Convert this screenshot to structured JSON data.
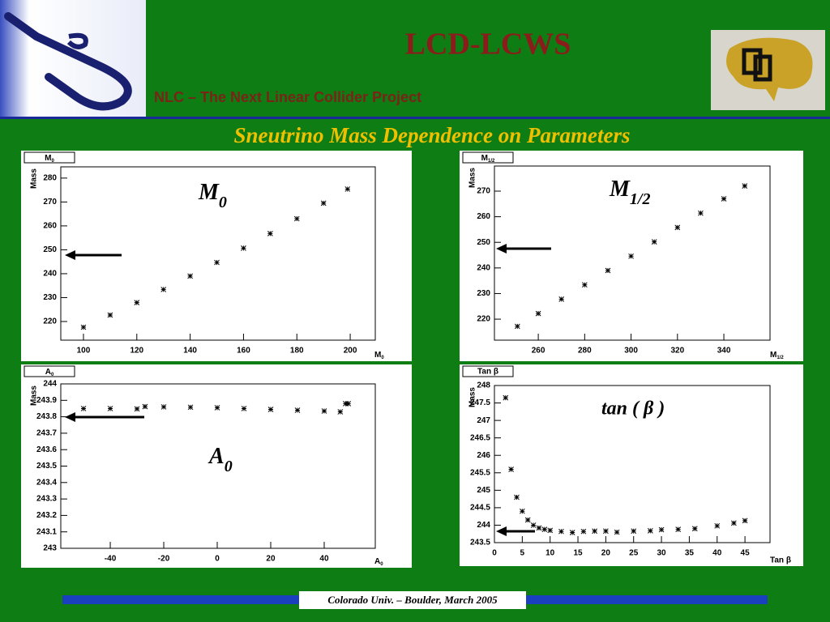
{
  "header": {
    "title": "LCD-LCWS",
    "subtitle": "NLC – The Next Linear Collider Project",
    "slide_title": "Sneutrino Mass Dependence on Parameters"
  },
  "footer": "Colorado Univ. – Boulder, March 2005",
  "chart_data": [
    {
      "type": "scatter",
      "box_label": {
        "base": "M",
        "sub": "0"
      },
      "y_label": "Mass",
      "x_label": {
        "base": "M",
        "sub": "0"
      },
      "annotation": {
        "base": "M",
        "sub": "0"
      },
      "color": "#000000",
      "x": [
        100,
        110,
        120,
        130,
        140,
        150,
        160,
        170,
        180,
        190,
        199
      ],
      "y": [
        217.6,
        222.7,
        227.9,
        233.4,
        239.0,
        244.7,
        250.7,
        256.8,
        263.0,
        269.5,
        275.4
      ],
      "xlim": [
        91.5,
        209.4
      ],
      "ylim": [
        212.2,
        284.7
      ],
      "xticks": [
        100,
        120,
        140,
        160,
        180,
        200
      ],
      "yticks": [
        220,
        230,
        240,
        250,
        260,
        270,
        280
      ]
    },
    {
      "type": "scatter",
      "box_label": {
        "base": "M",
        "sub": "1/2"
      },
      "y_label": "Mass",
      "x_label": {
        "base": "M",
        "sub": "1/2"
      },
      "annotation": {
        "base": "M",
        "sub": "1/2"
      },
      "color": "#000000",
      "x": [
        251,
        260,
        270,
        280,
        290,
        300,
        310,
        320,
        330,
        340,
        349
      ],
      "y": [
        217.2,
        222.2,
        227.8,
        233.4,
        239.0,
        244.6,
        250.2,
        255.8,
        261.4,
        267.0,
        272.0
      ],
      "xlim": [
        241.1,
        359.9
      ],
      "ylim": [
        211.8,
        279.8
      ],
      "xticks": [
        260,
        280,
        300,
        320,
        340
      ],
      "yticks": [
        220,
        230,
        240,
        250,
        260,
        270
      ]
    },
    {
      "type": "scatter",
      "box_label": {
        "base": "A",
        "sub": "0"
      },
      "y_label": "Mass",
      "x_label": {
        "base": "A",
        "sub": "0"
      },
      "annotation": {
        "base": "A",
        "sub": "0"
      },
      "color": "#000000",
      "x": [
        -50,
        -40,
        -30,
        -27,
        -20,
        -10,
        0,
        10,
        20,
        30,
        40,
        46,
        48,
        49
      ],
      "y": [
        243.85,
        243.85,
        243.848,
        243.862,
        243.86,
        243.858,
        243.855,
        243.85,
        243.845,
        243.84,
        243.835,
        243.83,
        243.88,
        243.88
      ],
      "xlim": [
        -58.5,
        59.1
      ],
      "ylim": [
        243,
        244
      ],
      "xticks": [
        -40,
        -20,
        0,
        20,
        40
      ],
      "yticks": [
        243,
        243.1,
        243.2,
        243.3,
        243.4,
        243.5,
        243.6,
        243.7,
        243.8,
        243.9,
        244
      ]
    },
    {
      "type": "scatter",
      "box_label": "Tan β",
      "y_label": "Mass",
      "x_label": "Tan β",
      "annotation": "tan (  β )",
      "color": "#000000",
      "x": [
        2,
        3,
        4,
        5,
        6,
        7,
        8,
        9,
        10,
        12,
        14,
        16,
        18,
        20,
        22,
        25,
        28,
        30,
        33,
        36,
        40,
        43,
        45
      ],
      "y": [
        247.65,
        245.6,
        244.8,
        244.4,
        244.15,
        244.0,
        243.92,
        243.88,
        243.85,
        243.82,
        243.79,
        243.82,
        243.83,
        243.83,
        243.8,
        243.83,
        243.84,
        243.87,
        243.88,
        243.9,
        243.98,
        244.06,
        244.13
      ],
      "xlim": [
        0,
        49.5
      ],
      "ylim": [
        243.5,
        248
      ],
      "xticks": [
        0,
        5,
        10,
        15,
        20,
        25,
        30,
        35,
        40,
        45
      ],
      "yticks": [
        243.5,
        244,
        244.5,
        245,
        245.5,
        246,
        246.5,
        247,
        247.5,
        248
      ]
    }
  ]
}
